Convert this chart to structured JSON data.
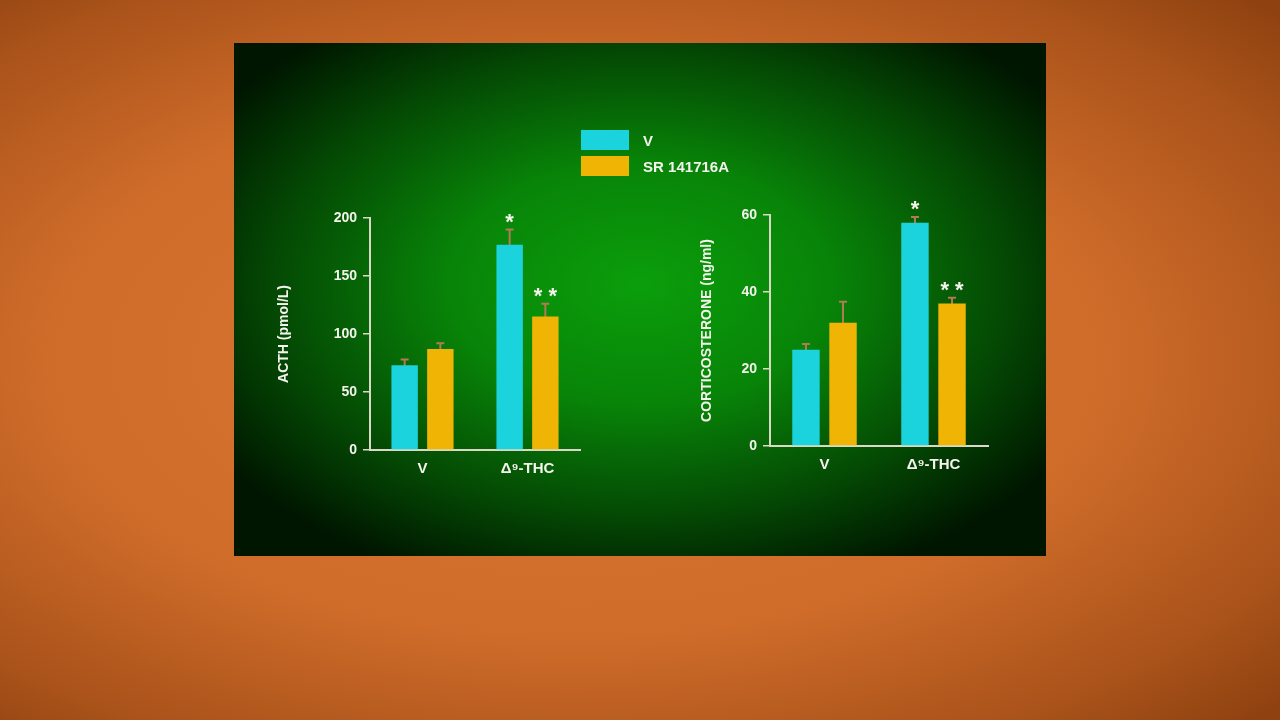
{
  "chart_data": [
    {
      "type": "bar",
      "categories": [
        "V",
        "Δ⁹-THC"
      ],
      "ylabel": "ACTH (pmol/L)",
      "ylim": [
        0,
        200
      ],
      "yticks": [
        0,
        50,
        100,
        150,
        200
      ],
      "legend": "top right",
      "series": [
        {
          "name": "V",
          "color": "#1ad3dc",
          "values": [
            73,
            177
          ],
          "errors": [
            5,
            13
          ]
        },
        {
          "name": "SR 141716A",
          "color": "#f0b405",
          "values": [
            87,
            115
          ],
          "errors": [
            5,
            11
          ]
        }
      ],
      "annotations": [
        {
          "text": "*",
          "x": "Δ⁹-THC",
          "y": 177
        },
        {
          "text": "* *",
          "x": "Δ⁹-THC",
          "y": 115
        }
      ]
    },
    {
      "type": "bar",
      "categories": [
        "V",
        "Δ⁹-THC"
      ],
      "ylabel": "CORTICOSTERONE (ng/ml)",
      "ylim": [
        0,
        60
      ],
      "yticks": [
        0,
        20,
        40,
        60
      ],
      "series": [
        {
          "color": "#1ad3dc",
          "values": [
            25,
            58
          ],
          "errors": [
            1.5,
            1.5
          ]
        },
        {
          "color": "#f0b405",
          "values": [
            32,
            37
          ],
          "errors": [
            5.5,
            1.5
          ]
        }
      ],
      "annotations": [
        {
          "text": "*",
          "x": "Δ⁹-THC",
          "y": 58
        },
        {
          "text": "* *",
          "x": "Δ⁹-THC",
          "y": 37
        }
      ]
    }
  ]
}
